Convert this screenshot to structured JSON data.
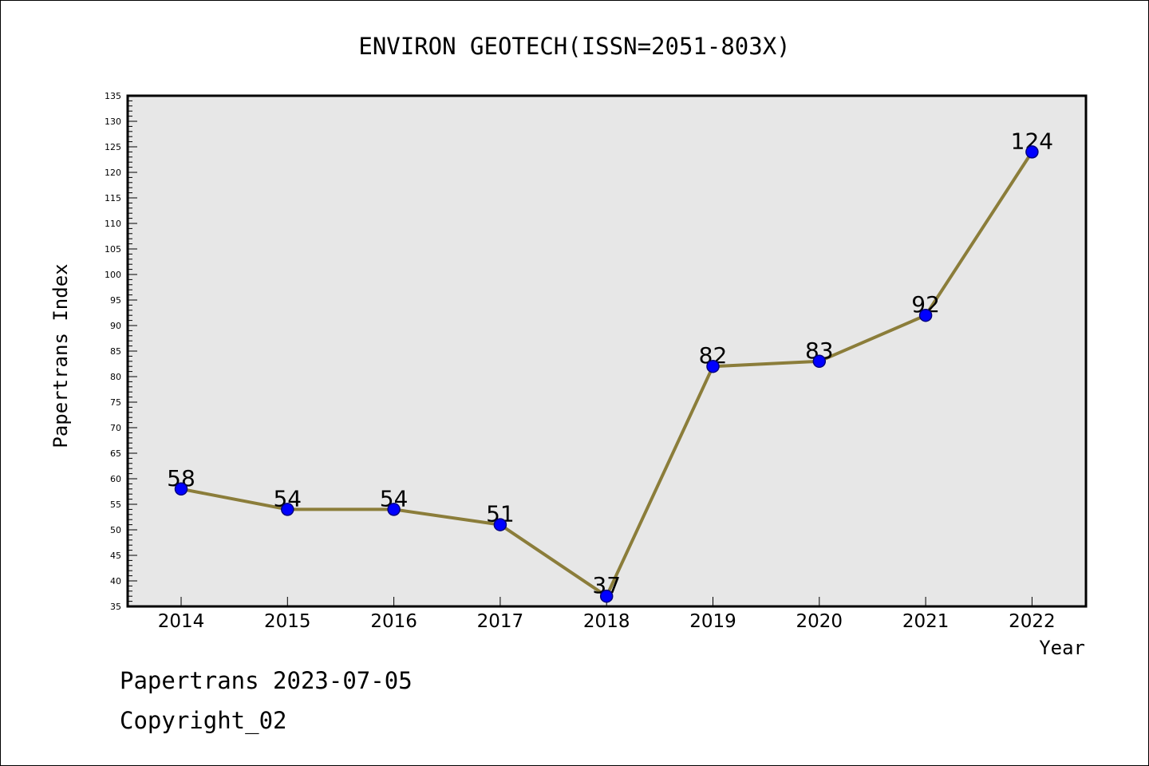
{
  "chart_data": {
    "type": "line",
    "title": "ENVIRON GEOTECH(ISSN=2051-803X)",
    "xlabel": "Year",
    "ylabel": "Papertrans Index",
    "categories": [
      "2014",
      "2015",
      "2016",
      "2017",
      "2018",
      "2019",
      "2020",
      "2021",
      "2022"
    ],
    "values": [
      58,
      54,
      54,
      51,
      37,
      82,
      83,
      92,
      124
    ],
    "data_labels": [
      "58",
      "54",
      "54",
      "51",
      "37",
      "82",
      "83",
      "92",
      "124"
    ],
    "ylim": [
      35,
      135
    ],
    "y_ticks": [
      35,
      40,
      45,
      50,
      55,
      60,
      65,
      70,
      75,
      80,
      85,
      90,
      95,
      100,
      105,
      110,
      115,
      120,
      125,
      130,
      135
    ],
    "y_minor_step": 1,
    "grid": false,
    "legend": "none",
    "colors": {
      "line": "#8B7D3A",
      "marker_fill": "#0000FF",
      "marker_stroke": "#000080",
      "plot_background": "#E7E7E7",
      "axis": "#000000"
    }
  },
  "footer": {
    "line1": "Papertrans 2023-07-05",
    "line2": "Copyright_02"
  }
}
